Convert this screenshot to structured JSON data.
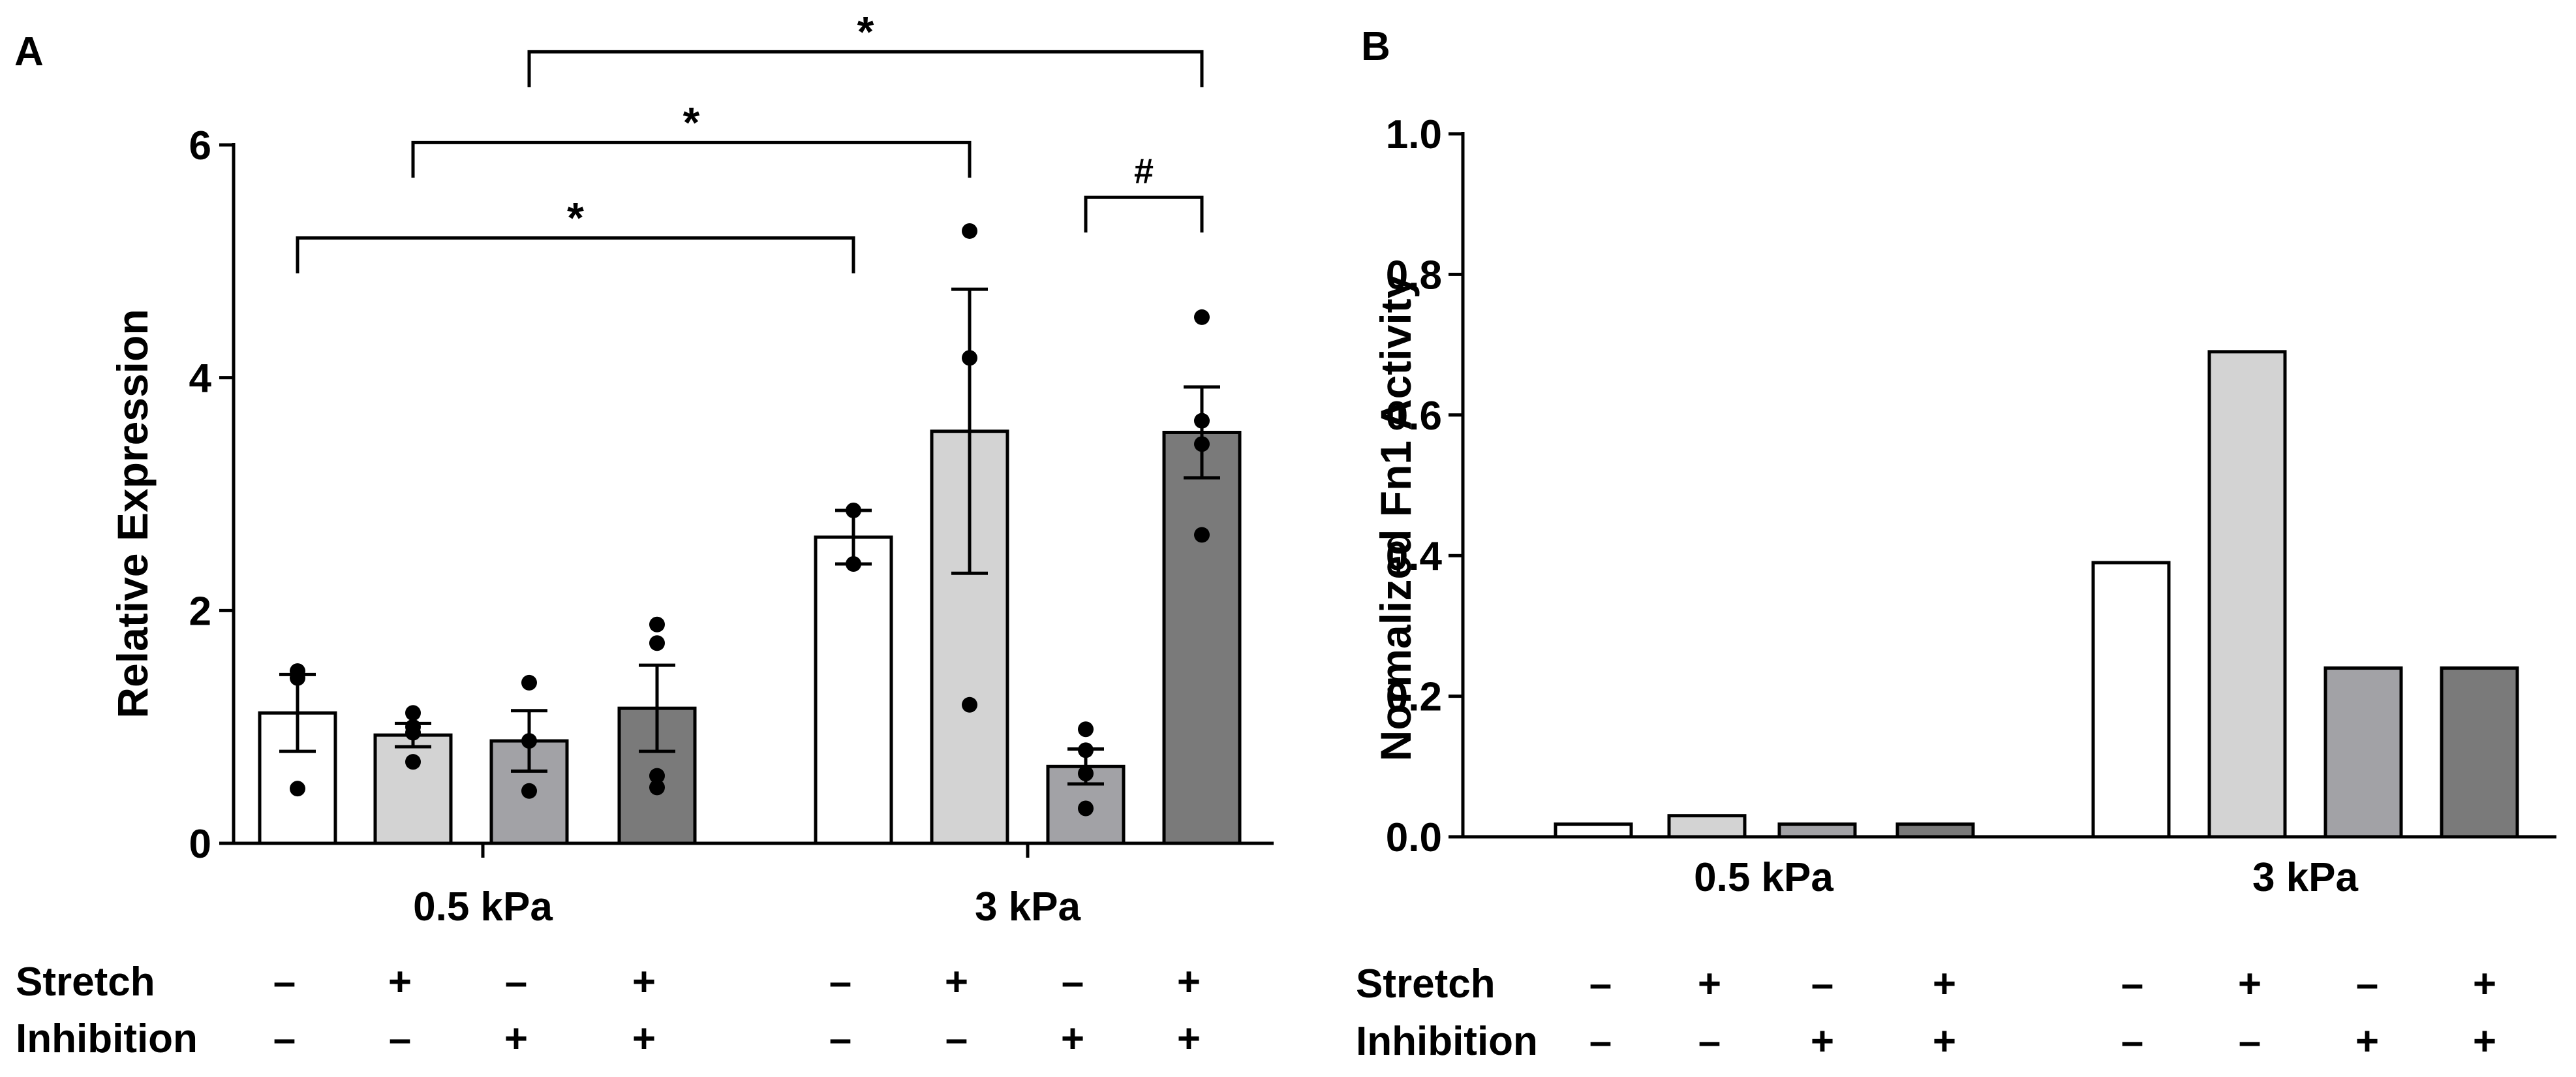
{
  "colors": {
    "ctrl": "#ffffff",
    "stretch": "#d3d3d3",
    "inhibition": "#a2a2a6",
    "both": "#7a7a7a",
    "ink": "#000000"
  },
  "glyphs": {
    "minus": "–",
    "plus": "+"
  },
  "chart_data": [
    {
      "panel": "A",
      "type": "bar",
      "ylabel": "Relative Expression",
      "ylim": [
        0,
        6
      ],
      "yticks": [
        0,
        2,
        4,
        6
      ],
      "groups": [
        "0.5 kPa",
        "3 kPa"
      ],
      "row_labels": [
        "Stretch",
        "Inhibition"
      ],
      "conditions": [
        {
          "group": 0,
          "stretch": "–",
          "inhibition": "–",
          "fill": "ctrl",
          "mean": 1.12,
          "sem": 0.33,
          "points": [
            1.48,
            1.42,
            0.47
          ]
        },
        {
          "group": 0,
          "stretch": "+",
          "inhibition": "–",
          "fill": "stretch",
          "mean": 0.93,
          "sem": 0.1,
          "points": [
            1.12,
            1.0,
            0.95,
            0.7
          ]
        },
        {
          "group": 0,
          "stretch": "–",
          "inhibition": "+",
          "fill": "inhibition",
          "mean": 0.88,
          "sem": 0.26,
          "points": [
            1.38,
            0.88,
            0.45
          ]
        },
        {
          "group": 0,
          "stretch": "+",
          "inhibition": "+",
          "fill": "both",
          "mean": 1.16,
          "sem": 0.37,
          "points": [
            1.88,
            1.72,
            0.58,
            0.48
          ]
        },
        {
          "group": 1,
          "stretch": "–",
          "inhibition": "–",
          "fill": "ctrl",
          "mean": 2.63,
          "sem": 0.23,
          "points": [
            2.86,
            2.4
          ]
        },
        {
          "group": 1,
          "stretch": "+",
          "inhibition": "–",
          "fill": "stretch",
          "mean": 3.54,
          "sem": 1.22,
          "points": [
            5.26,
            4.17,
            1.19
          ]
        },
        {
          "group": 1,
          "stretch": "–",
          "inhibition": "+",
          "fill": "inhibition",
          "mean": 0.66,
          "sem": 0.15,
          "points": [
            0.98,
            0.8,
            0.6,
            0.3
          ]
        },
        {
          "group": 1,
          "stretch": "+",
          "inhibition": "+",
          "fill": "both",
          "mean": 3.53,
          "sem": 0.39,
          "points": [
            4.52,
            3.63,
            3.43,
            2.65
          ]
        }
      ],
      "significance": [
        {
          "from": 0,
          "to": 4,
          "level": 5.2,
          "label": "*"
        },
        {
          "from": 1,
          "to": 5,
          "level": 6.02,
          "label": "*"
        },
        {
          "from": 2,
          "to": 7,
          "level": 6.8,
          "label": "*"
        },
        {
          "from": 6,
          "to": 7,
          "level": 5.55,
          "label": "#"
        }
      ]
    },
    {
      "panel": "B",
      "type": "bar",
      "ylabel": "Normalized Fn1 Activity",
      "ylim": [
        0,
        1.0
      ],
      "yticks": [
        "0.0",
        "0.2",
        "0.4",
        "0.6",
        "0.8",
        "1.0"
      ],
      "groups": [
        "0.5 kPa",
        "3 kPa"
      ],
      "row_labels": [
        "Stretch",
        "Inhibition"
      ],
      "conditions": [
        {
          "group": 0,
          "stretch": "–",
          "inhibition": "–",
          "fill": "ctrl",
          "value": 0.018
        },
        {
          "group": 0,
          "stretch": "+",
          "inhibition": "–",
          "fill": "stretch",
          "value": 0.03
        },
        {
          "group": 0,
          "stretch": "–",
          "inhibition": "+",
          "fill": "inhibition",
          "value": 0.018
        },
        {
          "group": 0,
          "stretch": "+",
          "inhibition": "+",
          "fill": "both",
          "value": 0.018
        },
        {
          "group": 1,
          "stretch": "–",
          "inhibition": "–",
          "fill": "ctrl",
          "value": 0.39
        },
        {
          "group": 1,
          "stretch": "+",
          "inhibition": "–",
          "fill": "stretch",
          "value": 0.69
        },
        {
          "group": 1,
          "stretch": "–",
          "inhibition": "+",
          "fill": "inhibition",
          "value": 0.24
        },
        {
          "group": 1,
          "stretch": "+",
          "inhibition": "+",
          "fill": "both",
          "value": 0.24
        }
      ]
    }
  ]
}
